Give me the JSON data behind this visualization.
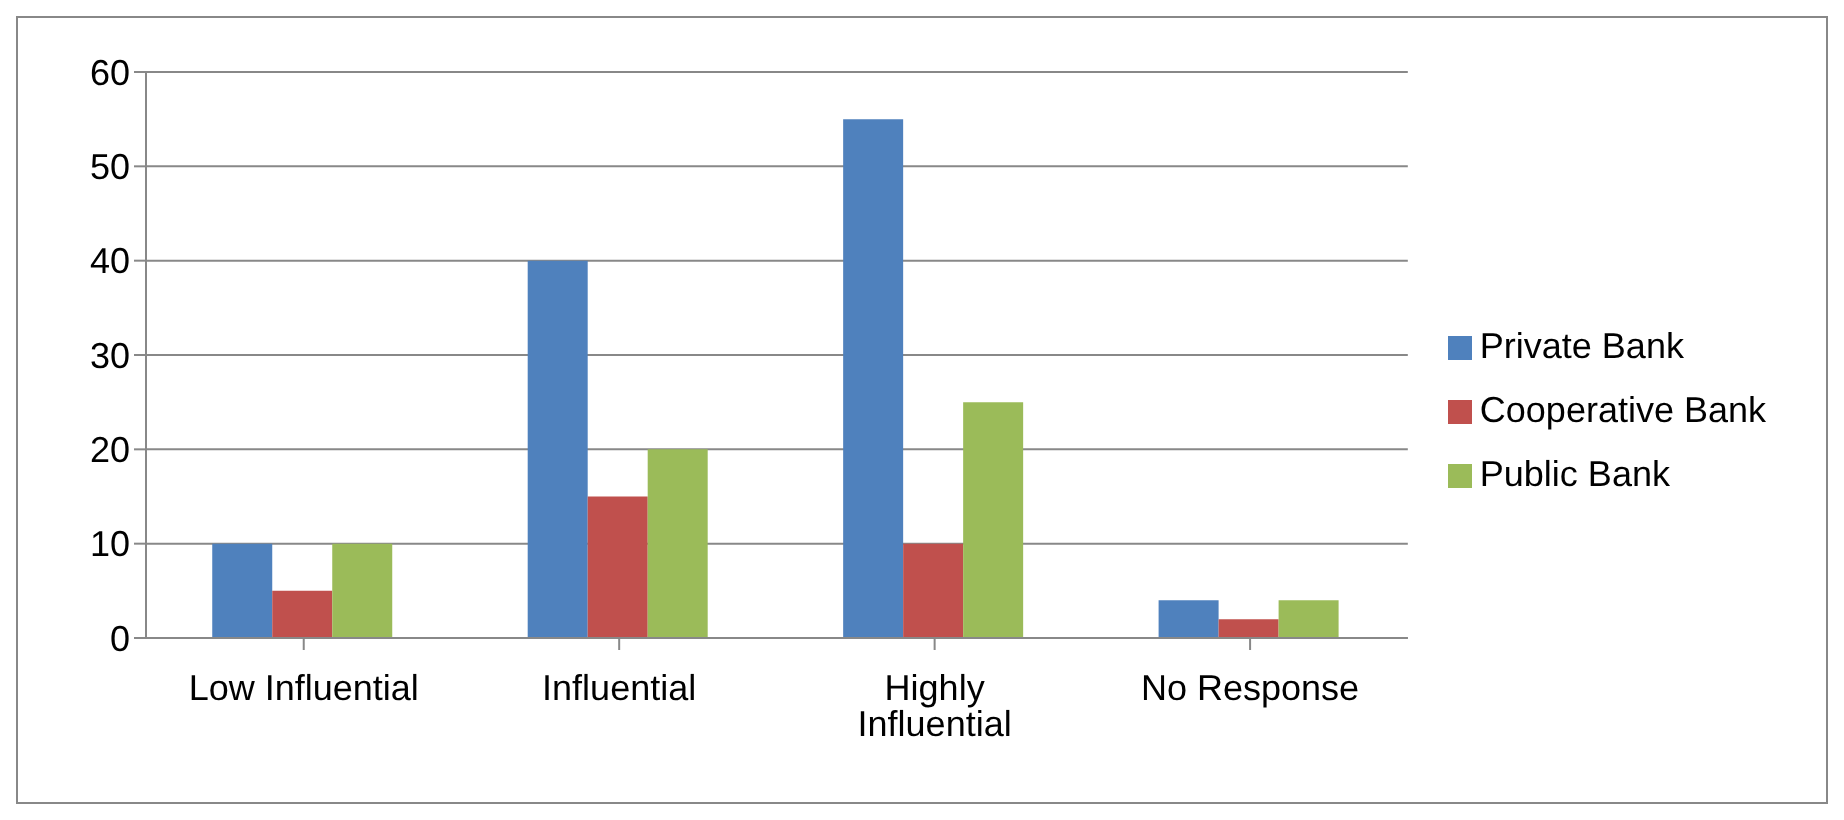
{
  "chart_data": {
    "type": "bar",
    "categories": [
      "Low Influential",
      "Influential",
      "Highly Influential",
      "No Response"
    ],
    "series": [
      {
        "name": "Private Bank",
        "color": "#4f81bd",
        "values": [
          10,
          40,
          55,
          4
        ]
      },
      {
        "name": "Cooperative Bank",
        "color": "#c0504d",
        "values": [
          5,
          15,
          10,
          2
        ]
      },
      {
        "name": "Public Bank",
        "color": "#9bbb59",
        "values": [
          10,
          20,
          25,
          4
        ]
      }
    ],
    "ylim": [
      0,
      60
    ],
    "yticks": [
      0,
      10,
      20,
      30,
      40,
      50,
      60
    ],
    "grid": "y",
    "legend": "right"
  }
}
